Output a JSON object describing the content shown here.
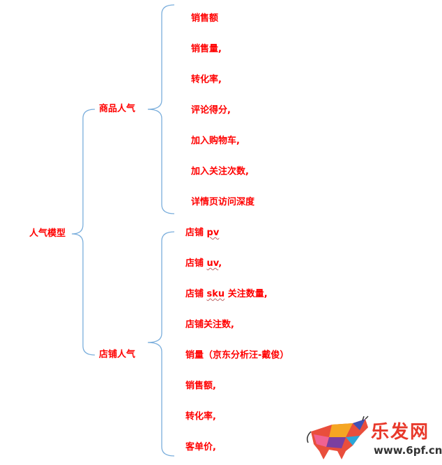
{
  "root": {
    "label": "人气模型"
  },
  "branches": [
    {
      "label": "商品人气",
      "items": [
        "销售额",
        "销售量,",
        "转化率,",
        "评论得分,",
        "加入购物车,",
        "加入关注次数,",
        "详情页访问深度"
      ]
    },
    {
      "label": "店铺人气",
      "items": [
        {
          "pre": "店铺 ",
          "term": "pv",
          "post": ""
        },
        {
          "pre": "店铺 ",
          "term": "uv",
          "post": ","
        },
        {
          "pre": "店铺 ",
          "term": "sku",
          "post": " 关注数量,"
        },
        {
          "pre": "店铺关注数,",
          "term": "",
          "post": ""
        },
        {
          "pre": "销量（京东分析汪-戴俊）",
          "term": "",
          "post": ""
        },
        {
          "pre": "销售额,",
          "term": "",
          "post": ""
        },
        {
          "pre": "转化率,",
          "term": "",
          "post": ""
        },
        {
          "pre": "客单价,",
          "term": "",
          "post": ""
        }
      ]
    }
  ],
  "colors": {
    "text": "#ff0000",
    "brace": "#7aaedc"
  },
  "watermark": {
    "name": "乐发网",
    "url": "www.6pf.cn",
    "icon": "polygon-bull-logo"
  }
}
